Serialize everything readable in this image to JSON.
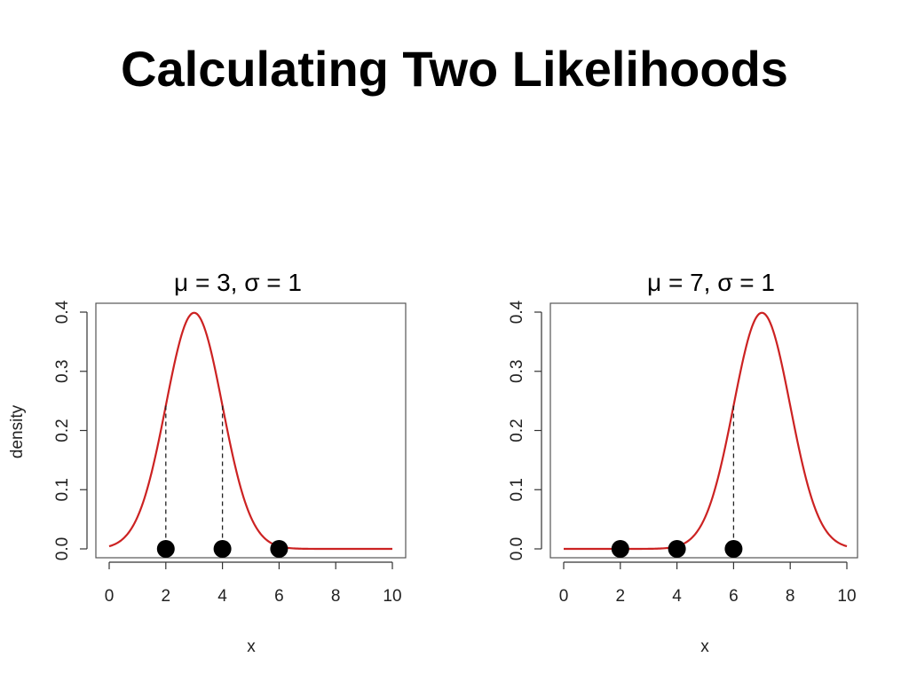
{
  "title": "Calculating Two Likelihoods",
  "colors": {
    "curve": "#cc2222",
    "points": "#000000",
    "axes": "#333333"
  },
  "chart_data": [
    {
      "type": "line",
      "title": "μ = 3, σ = 1",
      "xlabel": "x",
      "ylabel": "density",
      "xlim": [
        0,
        10
      ],
      "ylim": [
        0,
        0.4
      ],
      "xticks": [
        "0",
        "2",
        "4",
        "6",
        "8",
        "10"
      ],
      "yticks": [
        "0.0",
        "0.1",
        "0.2",
        "0.3",
        "0.4"
      ],
      "grid": false,
      "series": [
        {
          "kind": "normal-density",
          "mu": 3,
          "sigma": 1,
          "x_range": [
            0,
            10
          ]
        }
      ],
      "points": [
        {
          "x": 2,
          "y": 0
        },
        {
          "x": 4,
          "y": 0
        },
        {
          "x": 6,
          "y": 0
        }
      ],
      "dashed_drop_lines": [
        {
          "x": 2,
          "y": 0.242
        },
        {
          "x": 4,
          "y": 0.242
        }
      ]
    },
    {
      "type": "line",
      "title": "μ = 7, σ = 1",
      "xlabel": "x",
      "ylabel": "",
      "xlim": [
        0,
        10
      ],
      "ylim": [
        0,
        0.4
      ],
      "xticks": [
        "0",
        "2",
        "4",
        "6",
        "8",
        "10"
      ],
      "yticks": [
        "0.0",
        "0.1",
        "0.2",
        "0.3",
        "0.4"
      ],
      "grid": false,
      "series": [
        {
          "kind": "normal-density",
          "mu": 7,
          "sigma": 1,
          "x_range": [
            0,
            10
          ]
        }
      ],
      "points": [
        {
          "x": 2,
          "y": 0
        },
        {
          "x": 4,
          "y": 0
        },
        {
          "x": 6,
          "y": 0
        }
      ],
      "dashed_drop_lines": [
        {
          "x": 6,
          "y": 0.242
        }
      ]
    }
  ]
}
